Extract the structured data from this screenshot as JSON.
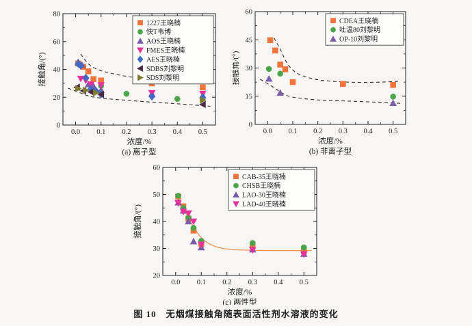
{
  "page": {
    "background": "#f7f6f4",
    "caption": {
      "label": "图 10",
      "text": "无烟煤接触角随表面活性剂水溶液的变化"
    }
  },
  "chart_data": [
    {
      "type": "scatter",
      "subtitle": "(a) 离子型",
      "xlabel": "浓度/%",
      "ylabel": "接触角/(°)",
      "xlim": [
        -0.05,
        0.55
      ],
      "ylim": [
        0,
        80
      ],
      "xticks": [
        "0.0",
        "0.1",
        "0.2",
        "0.3",
        "0.4",
        "0.5"
      ],
      "yticks": [
        "0",
        "20",
        "40",
        "60",
        "80"
      ],
      "x_minor_step": 0.05,
      "y_minor_step": 10,
      "grid": false,
      "legend_position": "top-right",
      "series": [
        {
          "name": "1227王晓楠",
          "marker": "square",
          "color": "#F0753B",
          "points": [
            [
              0.01,
              44.2
            ],
            [
              0.03,
              41.8
            ],
            [
              0.05,
              38.6
            ],
            [
              0.07,
              33.0
            ],
            [
              0.1,
              32.0
            ],
            [
              0.3,
              30.0
            ],
            [
              0.5,
              27.0
            ]
          ]
        },
        {
          "name": "快T韦博",
          "marker": "circle",
          "color": "#4BA64B",
          "points": [
            [
              0.1,
              28.2
            ],
            [
              0.2,
              22.5
            ],
            [
              0.4,
              18.8
            ]
          ]
        },
        {
          "name": "AOS王晓楠",
          "marker": "triangle-up",
          "color": "#7B5EA7",
          "points": [
            [
              0.01,
              45.2
            ],
            [
              0.025,
              43.2
            ],
            [
              0.05,
              29.2
            ],
            [
              0.07,
              28.0
            ],
            [
              0.1,
              25.2
            ],
            [
              0.3,
              22.5
            ],
            [
              0.5,
              21.2
            ]
          ]
        },
        {
          "name": "FMES王晓楠",
          "marker": "triangle-down",
          "color": "#E7309C",
          "points": [
            [
              0.02,
              33.3
            ],
            [
              0.04,
              32.0
            ],
            [
              0.06,
              29.2
            ],
            [
              0.1,
              28.6
            ],
            [
              0.3,
              23.0
            ],
            [
              0.5,
              22.4
            ]
          ]
        },
        {
          "name": "AES王晓楠",
          "marker": "diamond",
          "color": "#3F6BC5",
          "points": [
            [
              0.01,
              44.0
            ],
            [
              0.02,
              42.6
            ],
            [
              0.04,
              34.0
            ],
            [
              0.06,
              26.0
            ],
            [
              0.08,
              24.6
            ],
            [
              0.1,
              22.0
            ],
            [
              0.3,
              20.4
            ],
            [
              0.5,
              20.0
            ]
          ]
        },
        {
          "name": "SDBS刘黎明",
          "marker": "triangle-left",
          "color": "#4D2B45",
          "points": [
            [
              0.005,
              27.2
            ],
            [
              0.03,
              24.6
            ],
            [
              0.06,
              23.8
            ],
            [
              0.1,
              22.0
            ],
            [
              0.5,
              14.8
            ]
          ]
        },
        {
          "name": "SDS刘黎明",
          "marker": "triangle-right",
          "color": "#7D7D2E",
          "points": [
            [
              0.01,
              26.2
            ],
            [
              0.04,
              25.0
            ],
            [
              0.08,
              23.2
            ],
            [
              0.5,
              18.0
            ]
          ]
        }
      ],
      "curves": [
        {
          "name": "upper-envelope",
          "style": "dashed",
          "color": "#2b2b2b",
          "points": [
            [
              0.02,
              51
            ],
            [
              0.05,
              44
            ],
            [
              0.08,
              40.5
            ],
            [
              0.12,
              38
            ],
            [
              0.2,
              35
            ],
            [
              0.3,
              32.5
            ],
            [
              0.4,
              31
            ],
            [
              0.53,
              29.5
            ]
          ]
        },
        {
          "name": "lower-envelope",
          "style": "dashed",
          "color": "#2b2b2b",
          "points": [
            [
              -0.03,
              26.5
            ],
            [
              0.02,
              23
            ],
            [
              0.06,
              20.5
            ],
            [
              0.12,
              19
            ],
            [
              0.2,
              17.8
            ],
            [
              0.3,
              16.5
            ],
            [
              0.4,
              15.3
            ],
            [
              0.53,
              13.5
            ]
          ]
        }
      ]
    },
    {
      "type": "scatter",
      "subtitle": "(b) 非离子型",
      "xlabel": "浓度/%",
      "ylabel": "接触角/(°)",
      "xlim": [
        -0.05,
        0.55
      ],
      "ylim": [
        0,
        60
      ],
      "xticks": [
        "0.0",
        "0.1",
        "0.2",
        "0.3",
        "0.4",
        "0.5"
      ],
      "yticks": [
        "0",
        "15",
        "30",
        "45",
        "60"
      ],
      "x_minor_step": 0.05,
      "y_minor_step": 7.5,
      "grid": false,
      "legend_position": "top-right",
      "series": [
        {
          "name": "CDEA王晓楠",
          "marker": "square",
          "color": "#F0753B",
          "points": [
            [
              0.01,
              44.8
            ],
            [
              0.03,
              39.3
            ],
            [
              0.05,
              31.8
            ],
            [
              0.07,
              29.3
            ],
            [
              0.1,
              22.5
            ],
            [
              0.3,
              21.5
            ],
            [
              0.5,
              21.0
            ]
          ]
        },
        {
          "name": "吐温80刘黎明",
          "marker": "circle",
          "color": "#4BA64B",
          "points": [
            [
              0.005,
              29.5
            ],
            [
              0.05,
              27.0
            ],
            [
              0.5,
              14.8
            ]
          ]
        },
        {
          "name": "OP-10刘黎明",
          "marker": "triangle-up",
          "color": "#7B5EA7",
          "points": [
            [
              0.005,
              24.3
            ],
            [
              0.05,
              16.8
            ],
            [
              0.5,
              11.4
            ]
          ]
        }
      ],
      "curves": [
        {
          "name": "upper-envelope",
          "style": "dashed",
          "color": "#2b2b2b",
          "points": [
            [
              0.025,
              46
            ],
            [
              0.05,
              40
            ],
            [
              0.08,
              32
            ],
            [
              0.12,
              27
            ],
            [
              0.18,
              24.3
            ],
            [
              0.25,
              23
            ],
            [
              0.35,
              22.4
            ],
            [
              0.45,
              22.5
            ],
            [
              0.53,
              23
            ]
          ]
        },
        {
          "name": "lower-envelope",
          "style": "dashed",
          "color": "#2b2b2b",
          "points": [
            [
              -0.03,
              24
            ],
            [
              0.02,
              20
            ],
            [
              0.06,
              16.5
            ],
            [
              0.1,
              14.5
            ],
            [
              0.2,
              13
            ],
            [
              0.3,
              12.5
            ],
            [
              0.4,
              12
            ],
            [
              0.53,
              11.2
            ]
          ]
        }
      ]
    },
    {
      "type": "scatter",
      "subtitle": "(c) 两性型",
      "xlabel": "浓度/%",
      "ylabel": "接触角/(°)",
      "xlim": [
        -0.05,
        0.55
      ],
      "ylim": [
        20,
        60
      ],
      "xticks": [
        "0.0",
        "0.1",
        "0.2",
        "0.3",
        "0.4",
        "0.5"
      ],
      "yticks": [
        "20",
        "30",
        "40",
        "50",
        "60"
      ],
      "x_minor_step": 0.05,
      "y_minor_step": 5,
      "grid": false,
      "legend_position": "top-right",
      "series": [
        {
          "name": "CAB-35王晓楠",
          "marker": "square",
          "color": "#F0753B",
          "points": [
            [
              0.01,
              49.2
            ],
            [
              0.03,
              45.6
            ],
            [
              0.05,
              41.0
            ],
            [
              0.07,
              36.6
            ],
            [
              0.1,
              31.6
            ],
            [
              0.3,
              31.4
            ],
            [
              0.5,
              29.0
            ]
          ]
        },
        {
          "name": "CHSB王晓楠",
          "marker": "circle",
          "color": "#4BA64B",
          "points": [
            [
              0.01,
              49.5
            ],
            [
              0.03,
              45.0
            ],
            [
              0.05,
              41.4
            ],
            [
              0.07,
              37.6
            ],
            [
              0.1,
              32.8
            ],
            [
              0.3,
              32.0
            ],
            [
              0.5,
              30.4
            ]
          ]
        },
        {
          "name": "LAO-30王晓楠",
          "marker": "triangle-up",
          "color": "#7B5EA7",
          "points": [
            [
              0.01,
              47.0
            ],
            [
              0.03,
              44.0
            ],
            [
              0.05,
              40.0
            ],
            [
              0.07,
              32.6
            ],
            [
              0.1,
              30.4
            ],
            [
              0.3,
              29.6
            ],
            [
              0.5,
              28.0
            ]
          ]
        },
        {
          "name": "LAD-40王晓楠",
          "marker": "triangle-down",
          "color": "#E7309C",
          "points": [
            [
              0.01,
              46.8
            ],
            [
              0.03,
              43.6
            ],
            [
              0.05,
              43.0
            ],
            [
              0.07,
              40.0
            ],
            [
              0.1,
              31.4
            ],
            [
              0.3,
              29.4
            ],
            [
              0.5,
              27.8
            ]
          ]
        }
      ],
      "curves": [
        {
          "name": "fit-curve",
          "style": "solid",
          "color": "#E89858",
          "points": [
            [
              0.005,
              50
            ],
            [
              0.02,
              46.5
            ],
            [
              0.04,
              43
            ],
            [
              0.06,
              39.5
            ],
            [
              0.08,
              36.5
            ],
            [
              0.1,
              34
            ],
            [
              0.13,
              31.8
            ],
            [
              0.17,
              30.3
            ],
            [
              0.22,
              29.6
            ],
            [
              0.3,
              29.3
            ],
            [
              0.4,
              29.2
            ],
            [
              0.53,
              29.2
            ]
          ]
        }
      ]
    }
  ]
}
